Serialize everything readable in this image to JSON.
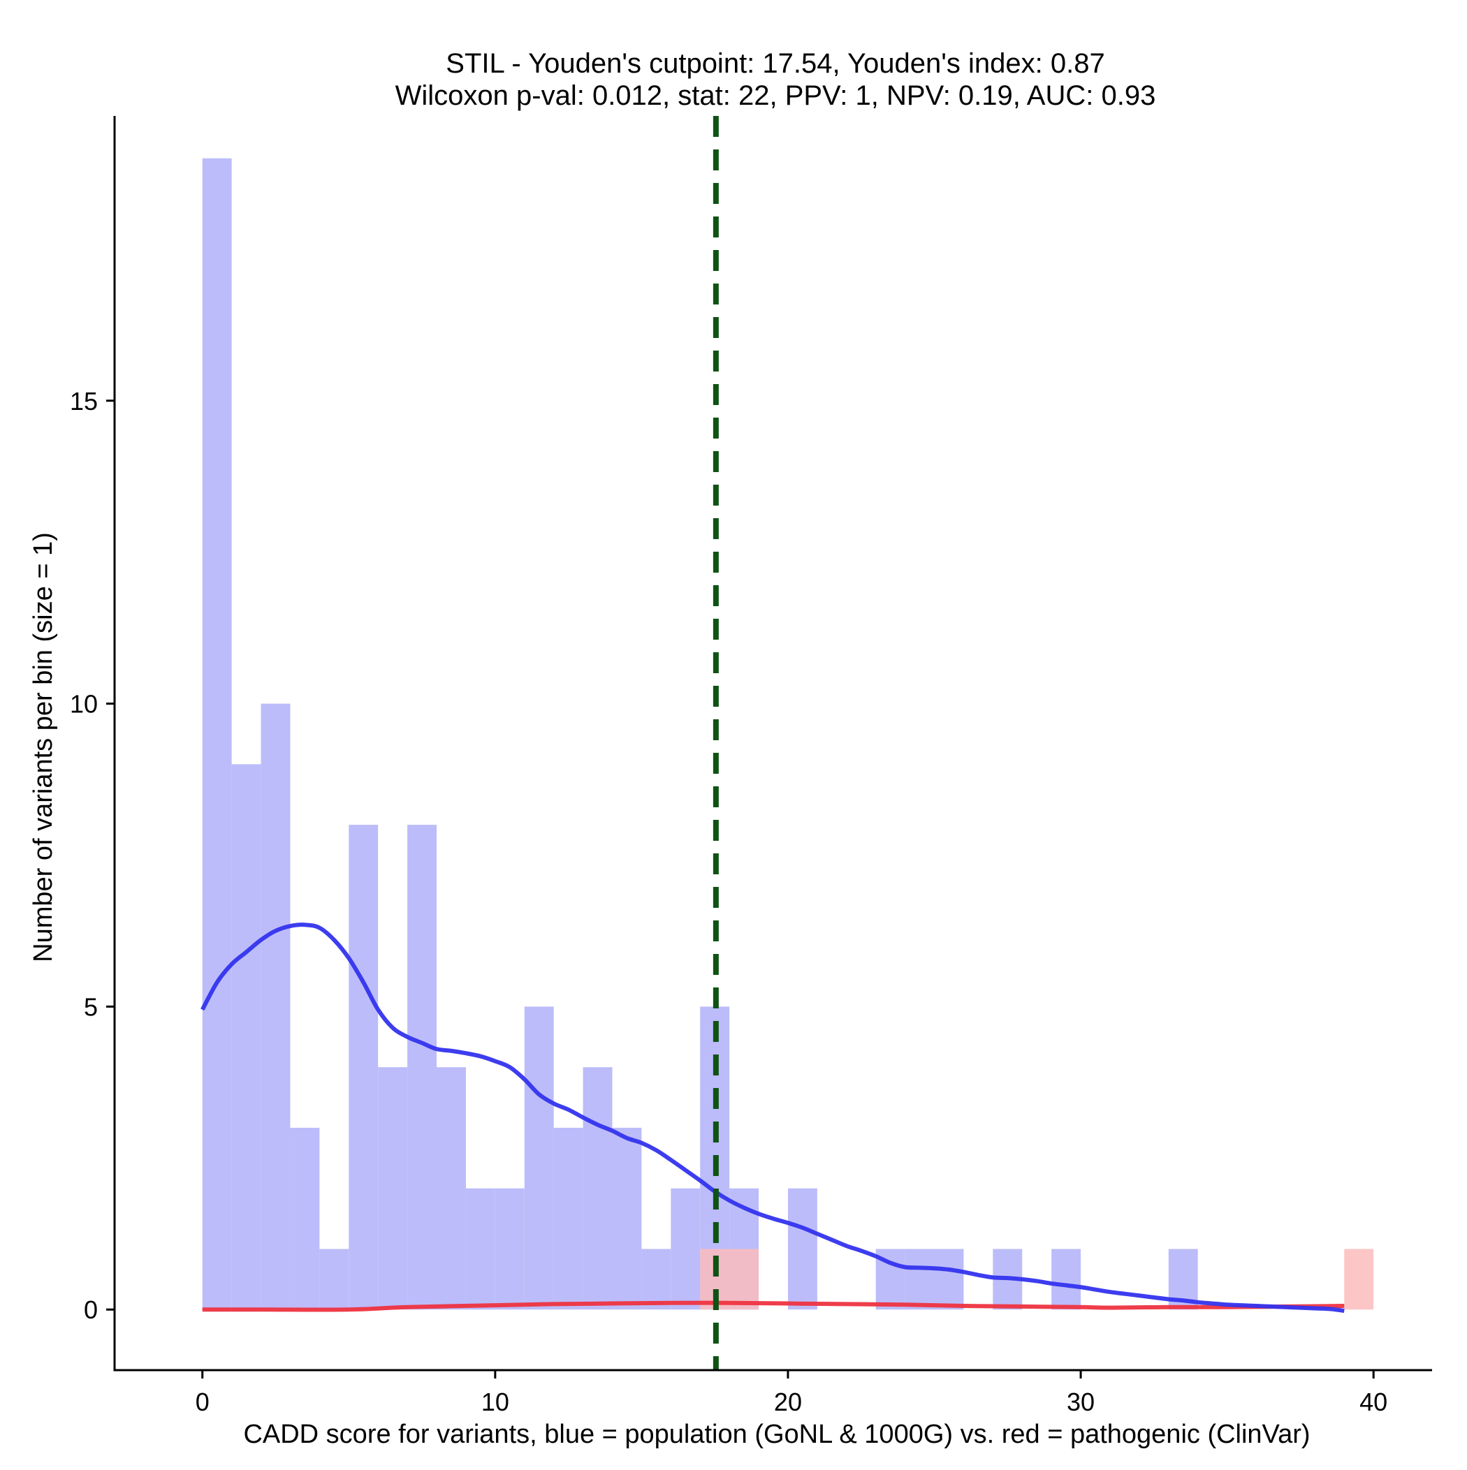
{
  "chart_data": {
    "type": "bar",
    "title_line1": "STIL - Youden's cutpoint: 17.54, Youden's index: 0.87",
    "title_line2": "Wilcoxon p-val: 0.012, stat: 22, PPV: 1, NPV: 0.19, AUC: 0.93",
    "xlabel": "CADD score for variants, blue = population (GoNL & 1000G) vs. red = pathogenic (ClinVar)",
    "ylabel": "Number of variants per bin (size = 1)",
    "xlim": [
      -3,
      42
    ],
    "ylim": [
      -1,
      19.7
    ],
    "xticks": [
      0,
      10,
      20,
      30,
      40
    ],
    "yticks": [
      0,
      5,
      10,
      15
    ],
    "bin_size": 1,
    "cutpoint": 17.54,
    "series": [
      {
        "name": "population (GoNL & 1000G)",
        "color": "#bcbcfa",
        "bins": [
          {
            "x0": 0,
            "count": 19
          },
          {
            "x0": 1,
            "count": 9
          },
          {
            "x0": 2,
            "count": 10
          },
          {
            "x0": 3,
            "count": 3
          },
          {
            "x0": 4,
            "count": 1
          },
          {
            "x0": 5,
            "count": 8
          },
          {
            "x0": 6,
            "count": 4
          },
          {
            "x0": 7,
            "count": 8
          },
          {
            "x0": 8,
            "count": 4
          },
          {
            "x0": 9,
            "count": 2
          },
          {
            "x0": 10,
            "count": 2
          },
          {
            "x0": 11,
            "count": 5
          },
          {
            "x0": 12,
            "count": 3
          },
          {
            "x0": 13,
            "count": 4
          },
          {
            "x0": 14,
            "count": 3
          },
          {
            "x0": 15,
            "count": 1
          },
          {
            "x0": 16,
            "count": 2
          },
          {
            "x0": 17,
            "count": 5
          },
          {
            "x0": 18,
            "count": 2
          },
          {
            "x0": 20,
            "count": 2
          },
          {
            "x0": 23,
            "count": 1
          },
          {
            "x0": 24,
            "count": 1
          },
          {
            "x0": 25,
            "count": 1
          },
          {
            "x0": 27,
            "count": 1
          },
          {
            "x0": 29,
            "count": 1
          },
          {
            "x0": 33,
            "count": 1
          }
        ]
      },
      {
        "name": "pathogenic (ClinVar)",
        "color": "#fcbcbc",
        "bins": [
          {
            "x0": 17,
            "count": 1
          },
          {
            "x0": 18,
            "count": 1
          },
          {
            "x0": 39,
            "count": 1
          }
        ]
      }
    ],
    "density_population": {
      "color": "#3333ee",
      "points": [
        [
          0,
          4.95
        ],
        [
          0.5,
          5.4
        ],
        [
          1,
          5.7
        ],
        [
          1.5,
          5.9
        ],
        [
          2,
          6.1
        ],
        [
          2.5,
          6.25
        ],
        [
          3,
          6.33
        ],
        [
          3.5,
          6.35
        ],
        [
          4,
          6.3
        ],
        [
          4.5,
          6.1
        ],
        [
          5,
          5.8
        ],
        [
          5.5,
          5.4
        ],
        [
          6,
          4.95
        ],
        [
          6.5,
          4.65
        ],
        [
          7,
          4.5
        ],
        [
          7.5,
          4.4
        ],
        [
          8,
          4.3
        ],
        [
          8.5,
          4.27
        ],
        [
          9,
          4.23
        ],
        [
          9.5,
          4.18
        ],
        [
          10,
          4.1
        ],
        [
          10.5,
          4.0
        ],
        [
          11,
          3.8
        ],
        [
          11.5,
          3.55
        ],
        [
          12,
          3.4
        ],
        [
          12.5,
          3.3
        ],
        [
          13,
          3.17
        ],
        [
          13.5,
          3.05
        ],
        [
          14,
          2.95
        ],
        [
          14.5,
          2.83
        ],
        [
          15,
          2.75
        ],
        [
          15.5,
          2.63
        ],
        [
          16,
          2.47
        ],
        [
          16.5,
          2.3
        ],
        [
          17,
          2.13
        ],
        [
          17.5,
          1.95
        ],
        [
          18,
          1.8
        ],
        [
          18.5,
          1.68
        ],
        [
          19,
          1.58
        ],
        [
          19.5,
          1.5
        ],
        [
          20,
          1.43
        ],
        [
          20.5,
          1.35
        ],
        [
          21,
          1.25
        ],
        [
          21.5,
          1.15
        ],
        [
          22,
          1.05
        ],
        [
          22.5,
          0.97
        ],
        [
          23,
          0.88
        ],
        [
          23.5,
          0.77
        ],
        [
          24,
          0.7
        ],
        [
          24.5,
          0.69
        ],
        [
          25,
          0.68
        ],
        [
          25.5,
          0.66
        ],
        [
          26,
          0.62
        ],
        [
          26.5,
          0.57
        ],
        [
          27,
          0.53
        ],
        [
          27.5,
          0.52
        ],
        [
          28,
          0.5
        ],
        [
          28.5,
          0.47
        ],
        [
          29,
          0.43
        ],
        [
          29.5,
          0.4
        ],
        [
          30,
          0.37
        ],
        [
          30.5,
          0.33
        ],
        [
          31,
          0.29
        ],
        [
          31.5,
          0.26
        ],
        [
          32,
          0.23
        ],
        [
          32.5,
          0.2
        ],
        [
          33,
          0.17
        ],
        [
          33.5,
          0.15
        ],
        [
          34,
          0.12
        ],
        [
          34.5,
          0.1
        ],
        [
          35,
          0.08
        ],
        [
          35.5,
          0.07
        ],
        [
          36,
          0.06
        ],
        [
          36.5,
          0.05
        ],
        [
          37,
          0.04
        ],
        [
          37.5,
          0.03
        ],
        [
          38,
          0.02
        ],
        [
          38.5,
          0.01
        ],
        [
          39,
          -0.02
        ]
      ]
    },
    "density_pathogenic": {
      "color": "#ee3340",
      "points": [
        [
          0,
          0
        ],
        [
          2,
          0
        ],
        [
          5,
          0
        ],
        [
          7,
          0.04
        ],
        [
          10,
          0.07
        ],
        [
          12,
          0.09
        ],
        [
          14,
          0.1
        ],
        [
          16,
          0.11
        ],
        [
          18,
          0.11
        ],
        [
          20,
          0.1
        ],
        [
          22,
          0.09
        ],
        [
          24,
          0.08
        ],
        [
          26,
          0.06
        ],
        [
          28,
          0.05
        ],
        [
          30,
          0.04
        ],
        [
          31,
          0.03
        ],
        [
          33,
          0.04
        ],
        [
          35,
          0.04
        ],
        [
          37,
          0.05
        ],
        [
          39,
          0.06
        ]
      ]
    },
    "cutpoint_color": "#0f5314"
  }
}
